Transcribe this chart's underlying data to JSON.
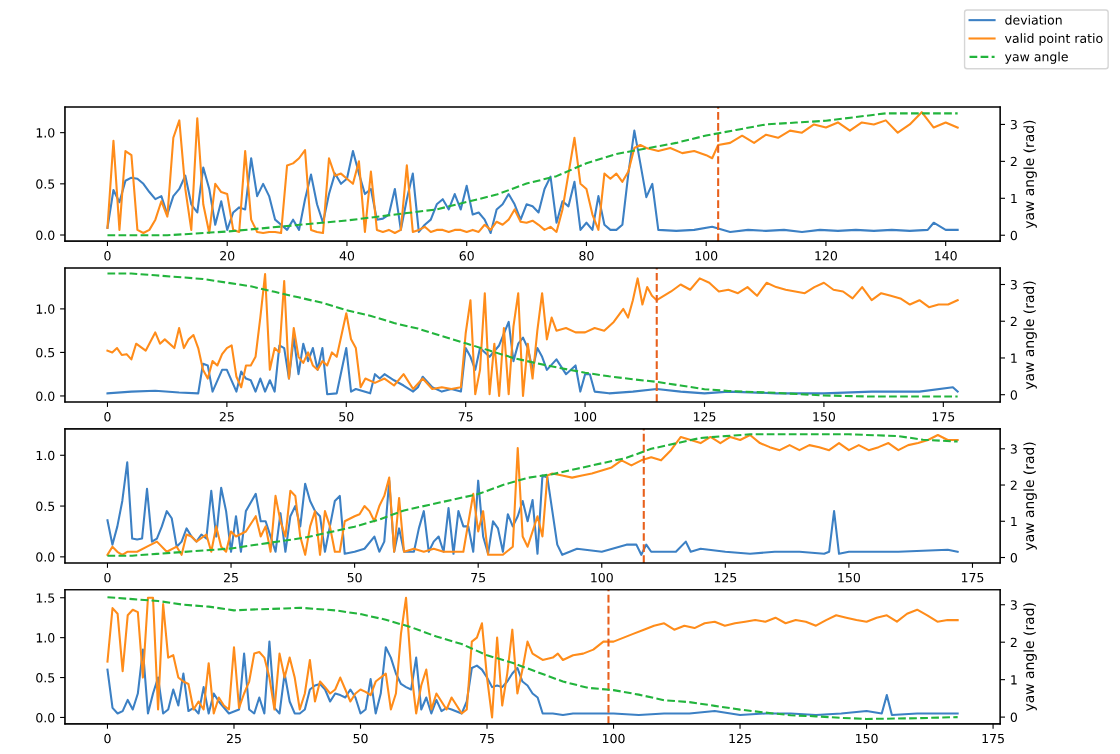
{
  "chart_data": [
    {
      "type": "line",
      "y2label": "yaw angle (rad)",
      "legend": "top right",
      "xlim": [
        -7.1,
        149.1
      ],
      "xticks": [
        0,
        20,
        40,
        60,
        80,
        100,
        120,
        140
      ],
      "ylim": [
        -0.06,
        1.25
      ],
      "yticks": [
        {
          "value": 0,
          "label": "0.0"
        },
        {
          "value": 0.5,
          "label": "0.5"
        },
        {
          "value": 1,
          "label": "1.0"
        }
      ],
      "y2lim": [
        -0.16,
        3.47
      ],
      "y2ticks": [
        0,
        1,
        2,
        3
      ],
      "ref_lines": [
        {
          "axis": "x",
          "value": 102,
          "color": "#e8601c",
          "line_style": "dashed"
        }
      ],
      "series": [
        {
          "name": "deviation",
          "color": "#3c80c4",
          "x": [
            0,
            1,
            2,
            3,
            4,
            5,
            6,
            7,
            8,
            9,
            10,
            11,
            12,
            13,
            14,
            15,
            16,
            17,
            18,
            19,
            20,
            21,
            22,
            23,
            24,
            25,
            26,
            27,
            28,
            29,
            30,
            31,
            32,
            33,
            34,
            35,
            36,
            37,
            38,
            39,
            40,
            41,
            42,
            43,
            44,
            45,
            46,
            47,
            48,
            49,
            50,
            51,
            52,
            53,
            54,
            55,
            56,
            57,
            58,
            59,
            60,
            61,
            62,
            63,
            64,
            65,
            66,
            67,
            68,
            69,
            70,
            71,
            72,
            73,
            74,
            75,
            76,
            77,
            78,
            79,
            80,
            81,
            82,
            83,
            84,
            85,
            86,
            87,
            88,
            89,
            90,
            91,
            92,
            95,
            98,
            101,
            104,
            107,
            110,
            113,
            116,
            119,
            122,
            125,
            128,
            131,
            134,
            137,
            138,
            140,
            142
          ],
          "values": [
            0.07,
            0.44,
            0.32,
            0.53,
            0.56,
            0.55,
            0.5,
            0.42,
            0.35,
            0.38,
            0.2,
            0.38,
            0.45,
            0.58,
            0.3,
            0.22,
            0.66,
            0.45,
            0.1,
            0.33,
            0.05,
            0.22,
            0.27,
            0.25,
            0.75,
            0.38,
            0.5,
            0.38,
            0.15,
            0.1,
            0.05,
            0.15,
            0.05,
            0.35,
            0.59,
            0.3,
            0.12,
            0.4,
            0.6,
            0.5,
            0.55,
            0.82,
            0.6,
            0.4,
            0.45,
            0.15,
            0.16,
            0.2,
            0.45,
            0.05,
            0.35,
            0.6,
            0.03,
            0.1,
            0.15,
            0.3,
            0.35,
            0.25,
            0.4,
            0.25,
            0.48,
            0.2,
            0.22,
            0.15,
            0.02,
            0.25,
            0.3,
            0.4,
            0.3,
            0.15,
            0.3,
            0.28,
            0.22,
            0.45,
            0.57,
            0.12,
            0.33,
            0.28,
            0.52,
            0.05,
            0.12,
            0.05,
            0.38,
            0.1,
            0.05,
            0.05,
            0.1,
            0.6,
            1.02,
            0.7,
            0.37,
            0.5,
            0.05,
            0.04,
            0.05,
            0.08,
            0.03,
            0.05,
            0.04,
            0.05,
            0.03,
            0.05,
            0.04,
            0.05,
            0.04,
            0.05,
            0.04,
            0.05,
            0.12,
            0.05,
            0.05
          ]
        },
        {
          "name": "valid point ratio",
          "color": "#ff8c1a",
          "x": [
            0,
            1,
            2,
            3,
            4,
            5,
            6,
            7,
            8,
            9,
            10,
            11,
            12,
            13,
            14,
            15,
            16,
            17,
            18,
            19,
            20,
            21,
            22,
            23,
            24,
            25,
            26,
            27,
            28,
            29,
            30,
            31,
            32,
            33,
            34,
            35,
            36,
            37,
            38,
            39,
            40,
            41,
            42,
            43,
            44,
            45,
            46,
            47,
            48,
            49,
            50,
            51,
            52,
            53,
            54,
            55,
            56,
            57,
            58,
            59,
            60,
            61,
            62,
            63,
            64,
            65,
            66,
            67,
            68,
            69,
            70,
            71,
            72,
            73,
            74,
            75,
            76,
            77,
            78,
            79,
            80,
            81,
            82,
            83,
            84,
            85,
            86,
            87,
            88,
            89,
            90,
            92,
            94,
            96,
            98,
            100,
            101,
            102,
            104,
            106,
            108,
            110,
            112,
            114,
            116,
            118,
            120,
            122,
            124,
            126,
            128,
            130,
            132,
            134,
            136,
            138,
            140,
            142
          ],
          "values": [
            0.07,
            0.92,
            0.05,
            0.82,
            0.78,
            0.05,
            0.02,
            0.05,
            0.15,
            0.33,
            0.18,
            0.95,
            1.12,
            0.45,
            0.05,
            1.14,
            0.3,
            0.02,
            0.5,
            0.42,
            0.4,
            0.05,
            0.03,
            0.82,
            0.15,
            0.03,
            0.02,
            0.03,
            0.03,
            0.02,
            0.68,
            0.7,
            0.75,
            0.83,
            0.05,
            0.03,
            0.02,
            0.75,
            0.58,
            0.6,
            0.55,
            0.5,
            0.72,
            0.03,
            0.62,
            0.05,
            0.03,
            0.05,
            0.02,
            0.05,
            0.68,
            0.03,
            0.05,
            0.08,
            0.03,
            0.05,
            0.05,
            0.03,
            0.05,
            0.05,
            0.03,
            0.05,
            0.03,
            0.1,
            0.05,
            0.13,
            0.1,
            0.15,
            0.25,
            0.13,
            0.12,
            0.14,
            0.1,
            0.05,
            0.08,
            0.03,
            0.25,
            0.6,
            0.95,
            0.5,
            0.45,
            0.2,
            0.05,
            0.6,
            0.55,
            0.6,
            0.52,
            0.62,
            0.85,
            0.88,
            0.85,
            0.82,
            0.85,
            0.8,
            0.82,
            0.78,
            0.75,
            0.88,
            0.9,
            0.97,
            0.9,
            0.98,
            0.95,
            1.02,
            1.0,
            1.08,
            1.05,
            1.1,
            1.02,
            1.1,
            1.08,
            1.12,
            1.0,
            1.08,
            1.2,
            1.05,
            1.1,
            1.05
          ]
        },
        {
          "name": "yaw angle",
          "color": "#22b43c",
          "axis": "y2",
          "line_style": "dashed",
          "x": [
            0,
            10,
            20,
            30,
            40,
            50,
            55,
            60,
            65,
            70,
            75,
            80,
            85,
            90,
            95,
            100,
            105,
            110,
            115,
            120,
            125,
            130,
            135,
            142
          ],
          "values": [
            0,
            0,
            0.1,
            0.25,
            0.4,
            0.6,
            0.7,
            0.9,
            1.1,
            1.4,
            1.6,
            1.95,
            2.2,
            2.35,
            2.5,
            2.7,
            2.85,
            3.0,
            3.05,
            3.1,
            3.2,
            3.3,
            3.3,
            3.3
          ]
        }
      ]
    },
    {
      "type": "line",
      "y2label": "yaw angle (rad)",
      "xlim": [
        -8.9,
        186.9
      ],
      "xticks": [
        0,
        25,
        50,
        75,
        100,
        125,
        150,
        175
      ],
      "ylim": [
        -0.07,
        1.47
      ],
      "yticks": [
        {
          "value": 0,
          "label": "0.0"
        },
        {
          "value": 0.5,
          "label": "0.5"
        },
        {
          "value": 1,
          "label": "1.0"
        }
      ],
      "y2lim": [
        -0.2,
        3.45
      ],
      "y2ticks": [
        0,
        1,
        2,
        3
      ],
      "ref_lines": [
        {
          "axis": "x",
          "value": 115,
          "color": "#e8601c",
          "line_style": "dashed"
        }
      ],
      "series": [
        {
          "color": "#3c80c4",
          "x": [
            0,
            5,
            10,
            15,
            19,
            20,
            21,
            22,
            24,
            25,
            27,
            28,
            29,
            30,
            31,
            32,
            33,
            34,
            35,
            36,
            37,
            38,
            39,
            40,
            41,
            42,
            43,
            44,
            45,
            46,
            48,
            50,
            51,
            52,
            55,
            56,
            57,
            58,
            60,
            62,
            64,
            65,
            66,
            68,
            70,
            72,
            74,
            75,
            76,
            77,
            78,
            80,
            82,
            84,
            85,
            86,
            87,
            88,
            89,
            90,
            91,
            92,
            94,
            96,
            98,
            99,
            100,
            101,
            102,
            105,
            110,
            115,
            120,
            125,
            130,
            140,
            150,
            160,
            170,
            177,
            178
          ],
          "values": [
            0.03,
            0.05,
            0.06,
            0.04,
            0.03,
            0.37,
            0.35,
            0.05,
            0.3,
            0.3,
            0.05,
            0.28,
            0.2,
            0.18,
            0.05,
            0.2,
            0.05,
            0.18,
            0.05,
            0.58,
            0.55,
            0.2,
            0.67,
            0.25,
            0.6,
            0.4,
            0.55,
            0.3,
            0.55,
            0.02,
            0.03,
            0.55,
            0.05,
            0.08,
            0.03,
            0.25,
            0.2,
            0.25,
            0.18,
            0.12,
            0.05,
            0.1,
            0.22,
            0.1,
            0.05,
            0.08,
            0.05,
            0.55,
            0.45,
            0.3,
            0.55,
            0.45,
            0.58,
            0.85,
            0.4,
            0.6,
            0.67,
            0.55,
            0.3,
            0.55,
            0.45,
            0.3,
            0.42,
            0.25,
            0.35,
            0.05,
            0.25,
            0.25,
            0.05,
            0.03,
            0.05,
            0.08,
            0.05,
            0.03,
            0.05,
            0.03,
            0.03,
            0.05,
            0.05,
            0.1,
            0.05
          ]
        },
        {
          "color": "#ff8c1a",
          "x": [
            0,
            1,
            2,
            3,
            4,
            5,
            6,
            8,
            10,
            11,
            12,
            14,
            15,
            16,
            17,
            18,
            19,
            20,
            21,
            22,
            23,
            24,
            25,
            26,
            27,
            28,
            29,
            30,
            31,
            32,
            33,
            34,
            35,
            36,
            37,
            38,
            39,
            40,
            41,
            42,
            43,
            44,
            45,
            46,
            47,
            48,
            49,
            50,
            51,
            52,
            53,
            54,
            56,
            58,
            60,
            62,
            64,
            66,
            68,
            70,
            72,
            74,
            75,
            76,
            77,
            78,
            79,
            80,
            81,
            82,
            83,
            84,
            85,
            86,
            87,
            88,
            89,
            90,
            91,
            92,
            93,
            94,
            96,
            98,
            100,
            102,
            104,
            106,
            108,
            109,
            110,
            111,
            112,
            113,
            114,
            115,
            118,
            120,
            122,
            124,
            126,
            128,
            130,
            132,
            134,
            136,
            138,
            140,
            142,
            144,
            146,
            148,
            150,
            152,
            154,
            156,
            158,
            160,
            162,
            164,
            166,
            168,
            170,
            172,
            174,
            176,
            178
          ],
          "values": [
            0.52,
            0.5,
            0.55,
            0.47,
            0.48,
            0.42,
            0.6,
            0.52,
            0.73,
            0.6,
            0.65,
            0.55,
            0.78,
            0.55,
            0.65,
            0.7,
            0.55,
            0.3,
            0.2,
            0.4,
            0.35,
            0.48,
            0.55,
            0.58,
            0.22,
            0.1,
            0.35,
            0.35,
            0.45,
            0.9,
            1.4,
            0.3,
            0.55,
            0.5,
            1.32,
            0.2,
            0.78,
            0.45,
            0.38,
            0.5,
            0.35,
            0.3,
            0.4,
            0.35,
            0.5,
            0.45,
            0.7,
            0.95,
            0.65,
            0.55,
            0.1,
            0.2,
            0.15,
            0.2,
            0.12,
            0.25,
            0.08,
            0.2,
            0.08,
            0.1,
            0.08,
            0.1,
            0.72,
            1.1,
            0.02,
            0.3,
            1.18,
            0.02,
            0.6,
            0.0,
            0.78,
            0.02,
            0.8,
            1.18,
            0.0,
            0.6,
            0.2,
            0.75,
            1.18,
            0.65,
            0.9,
            0.75,
            0.78,
            0.73,
            0.73,
            0.78,
            0.75,
            0.85,
            1.0,
            0.9,
            1.1,
            1.35,
            1.05,
            1.25,
            1.15,
            1.1,
            1.2,
            1.28,
            1.22,
            1.35,
            1.3,
            1.2,
            1.22,
            1.18,
            1.25,
            1.15,
            1.3,
            1.25,
            1.22,
            1.2,
            1.18,
            1.25,
            1.3,
            1.22,
            1.2,
            1.12,
            1.25,
            1.1,
            1.18,
            1.15,
            1.12,
            1.05,
            1.1,
            1.02,
            1.05,
            1.05,
            1.1
          ]
        },
        {
          "color": "#22b43c",
          "axis": "y2",
          "line_style": "dashed",
          "x": [
            0,
            5,
            10,
            20,
            25,
            30,
            35,
            40,
            45,
            50,
            55,
            60,
            65,
            70,
            75,
            80,
            85,
            90,
            95,
            100,
            105,
            110,
            115,
            120,
            125,
            130,
            140,
            150,
            160,
            178
          ],
          "values": [
            3.3,
            3.3,
            3.25,
            3.15,
            3.05,
            2.95,
            2.8,
            2.65,
            2.5,
            2.3,
            2.15,
            1.95,
            1.8,
            1.6,
            1.4,
            1.2,
            1.0,
            0.85,
            0.72,
            0.6,
            0.5,
            0.42,
            0.35,
            0.25,
            0.15,
            0.1,
            0.05,
            -0.02,
            -0.05,
            -0.05
          ]
        }
      ]
    },
    {
      "type": "line",
      "y2label": "yaw angle (rad)",
      "xlim": [
        -8.6,
        180.6
      ],
      "xticks": [
        0,
        25,
        50,
        75,
        100,
        125,
        150,
        175
      ],
      "ylim": [
        -0.06,
        1.26
      ],
      "yticks": [
        {
          "value": 0,
          "label": "0.0"
        },
        {
          "value": 0.5,
          "label": "0.5"
        },
        {
          "value": 1,
          "label": "1.0"
        }
      ],
      "y2lim": [
        -0.15,
        3.55
      ],
      "y2ticks": [
        0,
        1,
        2,
        3
      ],
      "ref_lines": [
        {
          "axis": "x",
          "value": 108.5,
          "color": "#e8601c",
          "line_style": "dashed"
        }
      ],
      "series": [
        {
          "color": "#3c80c4",
          "x": [
            0,
            1,
            2,
            3,
            4,
            5,
            6,
            7,
            8,
            9,
            10,
            11,
            12,
            13,
            14,
            15,
            16,
            17,
            18,
            19,
            20,
            21,
            22,
            23,
            24,
            25,
            26,
            27,
            28,
            30,
            31,
            32,
            33,
            34,
            35,
            36,
            37,
            38,
            39,
            40,
            41,
            42,
            43,
            44,
            45,
            46,
            47,
            48,
            50,
            52,
            54,
            55,
            56,
            57,
            58,
            59,
            60,
            62,
            63,
            64,
            65,
            66,
            67,
            68,
            69,
            70,
            71,
            72,
            73,
            74,
            75,
            76,
            77,
            78,
            79,
            80,
            81,
            82,
            83,
            84,
            85,
            86,
            87,
            88,
            89,
            90,
            91,
            92,
            95,
            100,
            105,
            107,
            108,
            109,
            110,
            115,
            117,
            118,
            120,
            125,
            130,
            135,
            140,
            145,
            146,
            147,
            148,
            150,
            160,
            170,
            172
          ],
          "values": [
            0.36,
            0.12,
            0.3,
            0.55,
            0.93,
            0.18,
            0.17,
            0.18,
            0.67,
            0.15,
            0.18,
            0.3,
            0.45,
            0.38,
            0.1,
            0.15,
            0.28,
            0.2,
            0.15,
            0.22,
            0.18,
            0.65,
            0.2,
            0.68,
            0.45,
            0.05,
            0.4,
            0.05,
            0.45,
            0.62,
            0.35,
            0.35,
            0.2,
            0.05,
            0.43,
            0.05,
            0.4,
            0.5,
            0.3,
            0.72,
            0.55,
            0.45,
            0.4,
            0.05,
            0.3,
            0.55,
            0.6,
            0.03,
            0.05,
            0.08,
            0.2,
            0.05,
            0.15,
            0.75,
            0.05,
            0.28,
            0.05,
            0.05,
            0.28,
            0.45,
            0.05,
            0.15,
            0.2,
            0.05,
            0.48,
            0.03,
            0.45,
            0.3,
            0.3,
            0.05,
            0.75,
            0.2,
            0.03,
            0.35,
            0.28,
            0.05,
            0.42,
            0.3,
            0.4,
            0.55,
            0.35,
            0.56,
            0.03,
            0.8,
            0.78,
            0.45,
            0.12,
            0.02,
            0.08,
            0.05,
            0.12,
            0.12,
            0.02,
            0.12,
            0.05,
            0.05,
            0.15,
            0.05,
            0.08,
            0.05,
            0.03,
            0.05,
            0.05,
            0.03,
            0.05,
            0.45,
            0.03,
            0.05,
            0.05,
            0.07,
            0.05
          ]
        },
        {
          "color": "#ff8c1a",
          "x": [
            0,
            1,
            2,
            3,
            4,
            6,
            8,
            10,
            12,
            14,
            15,
            16,
            17,
            18,
            20,
            21,
            22,
            23,
            24,
            25,
            26,
            28,
            30,
            31,
            32,
            33,
            34,
            35,
            36,
            37,
            38,
            39,
            40,
            41,
            42,
            43,
            44,
            45,
            46,
            47,
            48,
            50,
            51,
            52,
            53,
            54,
            55,
            56,
            57,
            58,
            59,
            60,
            62,
            64,
            66,
            68,
            70,
            72,
            74,
            75,
            76,
            77,
            79,
            80,
            82,
            83,
            84,
            85,
            86,
            87,
            88,
            89,
            90,
            92,
            94,
            96,
            98,
            100,
            102,
            104,
            106,
            108,
            110,
            112,
            114,
            116,
            118,
            120,
            122,
            124,
            126,
            128,
            130,
            132,
            134,
            136,
            138,
            140,
            142,
            144,
            146,
            148,
            150,
            152,
            154,
            156,
            158,
            160,
            162,
            164,
            166,
            168,
            170,
            172
          ],
          "values": [
            0.02,
            0.1,
            0.05,
            0.02,
            0.05,
            0.05,
            0.1,
            0.15,
            0.05,
            0.1,
            0.02,
            0.22,
            0.2,
            0.15,
            0.22,
            0.05,
            0.3,
            0.1,
            0.05,
            0.25,
            0.2,
            0.25,
            0.4,
            0.2,
            0.3,
            0.05,
            0.6,
            0.35,
            0.2,
            0.65,
            0.6,
            0.2,
            0.02,
            0.3,
            0.45,
            0.02,
            0.45,
            0.3,
            0.05,
            0.05,
            0.35,
            0.4,
            0.42,
            0.5,
            0.45,
            0.35,
            0.5,
            0.6,
            0.78,
            0.05,
            0.58,
            0.05,
            0.08,
            0.05,
            0.08,
            0.05,
            0.05,
            0.05,
            0.62,
            0.25,
            0.45,
            0.02,
            0.02,
            0.02,
            0.1,
            1.07,
            0.2,
            0.1,
            0.25,
            0.4,
            0.2,
            0.8,
            0.82,
            0.8,
            0.78,
            0.8,
            0.82,
            0.85,
            0.88,
            0.95,
            0.9,
            0.95,
            0.98,
            0.95,
            1.05,
            1.18,
            1.15,
            1.12,
            1.18,
            1.12,
            1.18,
            1.15,
            1.2,
            1.12,
            1.08,
            1.05,
            1.1,
            1.05,
            1.1,
            1.08,
            1.05,
            1.12,
            1.05,
            1.1,
            1.05,
            1.08,
            1.12,
            1.05,
            1.1,
            1.12,
            1.15,
            1.2,
            1.15,
            1.15
          ]
        },
        {
          "color": "#22b43c",
          "axis": "y2",
          "line_style": "dashed",
          "x": [
            0,
            5,
            10,
            15,
            20,
            25,
            30,
            35,
            40,
            45,
            50,
            55,
            60,
            65,
            70,
            75,
            80,
            85,
            90,
            95,
            100,
            105,
            110,
            115,
            120,
            125,
            130,
            140,
            150,
            160,
            165,
            172
          ],
          "values": [
            0.05,
            0.05,
            0.1,
            0.15,
            0.2,
            0.25,
            0.35,
            0.45,
            0.55,
            0.7,
            0.85,
            1.05,
            1.3,
            1.45,
            1.6,
            1.75,
            2.0,
            2.2,
            2.3,
            2.45,
            2.6,
            2.75,
            3.0,
            3.15,
            3.3,
            3.35,
            3.4,
            3.4,
            3.4,
            3.35,
            3.25,
            3.2
          ]
        }
      ]
    },
    {
      "type": "line",
      "y2label": "yaw angle (rad)",
      "xlim": [
        -8.4,
        176.4
      ],
      "xticks": [
        0,
        25,
        50,
        75,
        100,
        125,
        150,
        175
      ],
      "ylim": [
        -0.08,
        1.6
      ],
      "yticks": [
        {
          "value": 0,
          "label": "0.0"
        },
        {
          "value": 0.5,
          "label": "0.5"
        },
        {
          "value": 1,
          "label": "1.0"
        },
        {
          "value": 1.5,
          "label": "1.5"
        }
      ],
      "y2lim": [
        -0.18,
        3.4
      ],
      "y2ticks": [
        0,
        1,
        2,
        3
      ],
      "ref_lines": [
        {
          "axis": "x",
          "value": 99,
          "color": "#e8601c",
          "line_style": "dashed"
        }
      ],
      "series": [
        {
          "color": "#3c80c4",
          "x": [
            0,
            1,
            2,
            3,
            4,
            5,
            6,
            7,
            8,
            9,
            10,
            11,
            12,
            13,
            14,
            15,
            16,
            17,
            18,
            19,
            20,
            21,
            22,
            24,
            26,
            27,
            28,
            29,
            30,
            31,
            32,
            33,
            34,
            35,
            36,
            37,
            38,
            39,
            40,
            41,
            42,
            43,
            44,
            45,
            46,
            47,
            48,
            49,
            50,
            51,
            52,
            53,
            54,
            55,
            56,
            57,
            58,
            59,
            60,
            61,
            62,
            63,
            64,
            65,
            66,
            67,
            68,
            70,
            71,
            72,
            73,
            74,
            75,
            76,
            77,
            78,
            79,
            80,
            81,
            82,
            83,
            84,
            85,
            86,
            88,
            90,
            92,
            95,
            100,
            105,
            110,
            115,
            120,
            125,
            130,
            135,
            140,
            145,
            150,
            153,
            154,
            155,
            160,
            165,
            168
          ],
          "values": [
            0.6,
            0.12,
            0.05,
            0.08,
            0.22,
            0.1,
            0.3,
            0.85,
            0.05,
            0.3,
            0.5,
            0.05,
            0.1,
            0.35,
            0.15,
            0.55,
            0.08,
            0.12,
            0.05,
            0.38,
            0.05,
            0.3,
            0.2,
            0.05,
            0.1,
            0.8,
            0.1,
            0.05,
            0.25,
            0.05,
            0.95,
            0.12,
            0.05,
            0.55,
            0.2,
            0.05,
            0.05,
            0.1,
            0.35,
            0.4,
            0.42,
            0.35,
            0.2,
            0.3,
            0.28,
            0.25,
            0.35,
            0.25,
            0.05,
            0.1,
            0.48,
            0.05,
            0.3,
            0.88,
            0.75,
            0.55,
            0.42,
            0.38,
            0.35,
            0.75,
            0.1,
            0.25,
            0.05,
            0.22,
            0.08,
            0.12,
            0.1,
            0.05,
            0.2,
            0.62,
            0.65,
            0.6,
            0.5,
            0.38,
            0.4,
            0.38,
            0.45,
            0.55,
            0.62,
            0.45,
            0.4,
            0.3,
            0.25,
            0.05,
            0.05,
            0.03,
            0.05,
            0.05,
            0.05,
            0.03,
            0.05,
            0.05,
            0.08,
            0.03,
            0.05,
            0.05,
            0.03,
            0.05,
            0.08,
            0.05,
            0.28,
            0.03,
            0.05,
            0.05,
            0.05
          ]
        },
        {
          "color": "#ff8c1a",
          "x": [
            0,
            1,
            2,
            3,
            4,
            5,
            6,
            7,
            8,
            9,
            10,
            11,
            12,
            13,
            14,
            15,
            16,
            17,
            18,
            19,
            20,
            21,
            22,
            23,
            24,
            25,
            26,
            27,
            28,
            29,
            30,
            31,
            32,
            33,
            34,
            35,
            36,
            37,
            38,
            39,
            40,
            41,
            42,
            43,
            44,
            45,
            46,
            47,
            48,
            49,
            50,
            51,
            52,
            53,
            54,
            55,
            56,
            57,
            58,
            59,
            60,
            61,
            62,
            63,
            64,
            65,
            66,
            67,
            68,
            69,
            70,
            71,
            72,
            73,
            74,
            75,
            76,
            77,
            78,
            79,
            80,
            81,
            82,
            83,
            84,
            86,
            88,
            89,
            90,
            92,
            94,
            96,
            98,
            100,
            102,
            104,
            106,
            108,
            110,
            112,
            114,
            116,
            118,
            120,
            122,
            124,
            126,
            128,
            130,
            132,
            134,
            136,
            138,
            140,
            142,
            144,
            146,
            148,
            150,
            152,
            154,
            156,
            158,
            160,
            162,
            164,
            166,
            168
          ],
          "values": [
            0.7,
            1.37,
            1.3,
            0.58,
            1.28,
            1.35,
            1.32,
            0.5,
            1.5,
            1.5,
            0.1,
            1.42,
            0.75,
            0.78,
            0.5,
            0.45,
            0.42,
            0.1,
            0.2,
            0.1,
            0.68,
            0.05,
            0.25,
            0.15,
            0.1,
            0.88,
            0.12,
            0.3,
            0.45,
            0.8,
            0.82,
            0.75,
            0.5,
            0.1,
            0.8,
            0.5,
            0.75,
            0.5,
            0.1,
            0.3,
            0.72,
            0.2,
            0.45,
            0.38,
            0.3,
            0.35,
            0.5,
            0.35,
            0.2,
            0.3,
            0.35,
            0.32,
            0.28,
            0.45,
            0.5,
            0.55,
            0.1,
            0.3,
            1.05,
            1.5,
            0.6,
            0.05,
            0.4,
            0.6,
            0.1,
            0.3,
            0.2,
            0.1,
            0.25,
            0.15,
            0.05,
            0.1,
            0.95,
            1.0,
            1.18,
            0.5,
            0.0,
            1.0,
            0.15,
            0.55,
            1.1,
            0.3,
            0.6,
            0.95,
            0.8,
            0.72,
            0.75,
            0.8,
            0.72,
            0.78,
            0.8,
            0.85,
            0.95,
            0.95,
            1.0,
            1.05,
            1.1,
            1.15,
            1.18,
            1.1,
            1.15,
            1.12,
            1.18,
            1.2,
            1.15,
            1.18,
            1.2,
            1.22,
            1.2,
            1.25,
            1.18,
            1.22,
            1.2,
            1.15,
            1.22,
            1.28,
            1.25,
            1.22,
            1.2,
            1.25,
            1.28,
            1.2,
            1.3,
            1.35,
            1.28,
            1.2,
            1.22,
            1.22
          ]
        },
        {
          "color": "#22b43c",
          "axis": "y2",
          "line_style": "dashed",
          "x": [
            0,
            5,
            10,
            15,
            20,
            25,
            30,
            35,
            38,
            45,
            50,
            55,
            60,
            65,
            70,
            75,
            80,
            85,
            90,
            95,
            100,
            105,
            110,
            115,
            120,
            125,
            130,
            135,
            140,
            145,
            150,
            160,
            168
          ],
          "values": [
            3.2,
            3.15,
            3.1,
            3.0,
            2.95,
            2.85,
            2.88,
            2.9,
            2.92,
            2.85,
            2.75,
            2.6,
            2.4,
            2.15,
            1.95,
            1.65,
            1.45,
            1.2,
            0.95,
            0.78,
            0.72,
            0.6,
            0.45,
            0.4,
            0.3,
            0.2,
            0.12,
            0.05,
            0.02,
            -0.02,
            -0.05,
            -0.03,
            0.0
          ]
        }
      ]
    }
  ]
}
